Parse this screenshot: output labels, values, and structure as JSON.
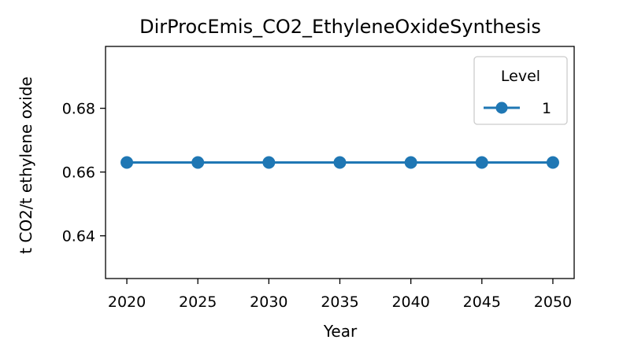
{
  "chart_data": {
    "type": "line",
    "title": "DirProcEmis_CO2_EthyleneOxideSynthesis",
    "xlabel": "Year",
    "ylabel": "t CO2/t ethylene oxide",
    "x": [
      2020,
      2025,
      2030,
      2035,
      2040,
      2045,
      2050
    ],
    "xticks": [
      "2020",
      "2025",
      "2030",
      "2035",
      "2040",
      "2045",
      "2050"
    ],
    "xlim": [
      2018.5,
      2051.5
    ],
    "yticks": [
      "0.64",
      "0.66",
      "0.68"
    ],
    "ytick_values": [
      0.64,
      0.66,
      0.68
    ],
    "ylim": [
      0.6266,
      0.6994
    ],
    "legend": {
      "title": "Level",
      "placement": "top-right"
    },
    "grid": false,
    "series": [
      {
        "name": "1",
        "color": "#1f77b4",
        "marker": "circle",
        "values": [
          0.663,
          0.663,
          0.663,
          0.663,
          0.663,
          0.663,
          0.663
        ]
      }
    ]
  }
}
